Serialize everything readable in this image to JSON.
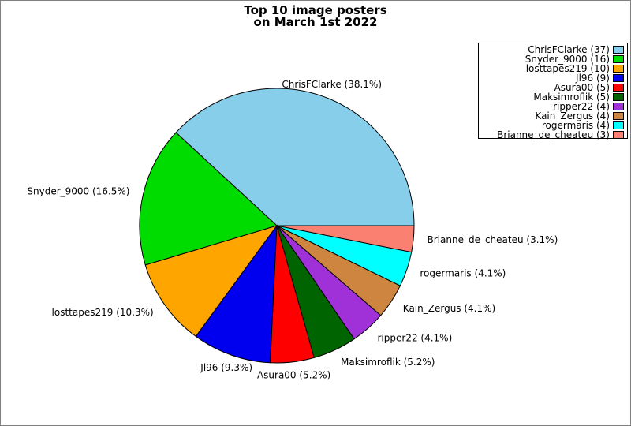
{
  "chart_data": {
    "type": "pie",
    "title": "Top 10 image posters\non March 1st 2022",
    "total": 97,
    "start_angle_deg": 0,
    "direction": "counterclockwise",
    "legend_position": "top-right",
    "slices": [
      {
        "name": "ChrisFClarke",
        "count": 37,
        "percent": 38.1,
        "color": "#87CEEB",
        "slice_label": "ChrisFClarke (38.1%)",
        "legend_label": "ChrisFClarke (37)"
      },
      {
        "name": "Snyder_9000",
        "count": 16,
        "percent": 16.5,
        "color": "#00DC00",
        "slice_label": "Snyder_9000 (16.5%)",
        "legend_label": "Snyder_9000 (16)"
      },
      {
        "name": "losttapes219",
        "count": 10,
        "percent": 10.3,
        "color": "#FFA500",
        "slice_label": "losttapes219 (10.3%)",
        "legend_label": "losttapes219 (10)"
      },
      {
        "name": "Jl96",
        "count": 9,
        "percent": 9.3,
        "color": "#0000EE",
        "slice_label": "Jl96 (9.3%)",
        "legend_label": "Jl96 (9)"
      },
      {
        "name": "Asura00",
        "count": 5,
        "percent": 5.2,
        "color": "#FF0000",
        "slice_label": "Asura00 (5.2%)",
        "legend_label": "Asura00 (5)"
      },
      {
        "name": "Maksimroflik",
        "count": 5,
        "percent": 5.2,
        "color": "#006400",
        "slice_label": "Maksimroflik (5.2%)",
        "legend_label": "Maksimroflik (5)"
      },
      {
        "name": "ripper22",
        "count": 4,
        "percent": 4.1,
        "color": "#A030D8",
        "slice_label": "ripper22 (4.1%)",
        "legend_label": "ripper22 (4)"
      },
      {
        "name": "Kain_Zergus",
        "count": 4,
        "percent": 4.1,
        "color": "#CD853F",
        "slice_label": "Kain_Zergus (4.1%)",
        "legend_label": "Kain_Zergus (4)"
      },
      {
        "name": "rogermaris",
        "count": 4,
        "percent": 4.1,
        "color": "#00FFFF",
        "slice_label": "rogermaris (4.1%)",
        "legend_label": "rogermaris (4)"
      },
      {
        "name": "Brianne_de_cheateu",
        "count": 3,
        "percent": 3.1,
        "color": "#FA8072",
        "slice_label": "Brianne_de_cheateu (3.1%)",
        "legend_label": "Brianne_de_cheateu (3)"
      }
    ]
  }
}
